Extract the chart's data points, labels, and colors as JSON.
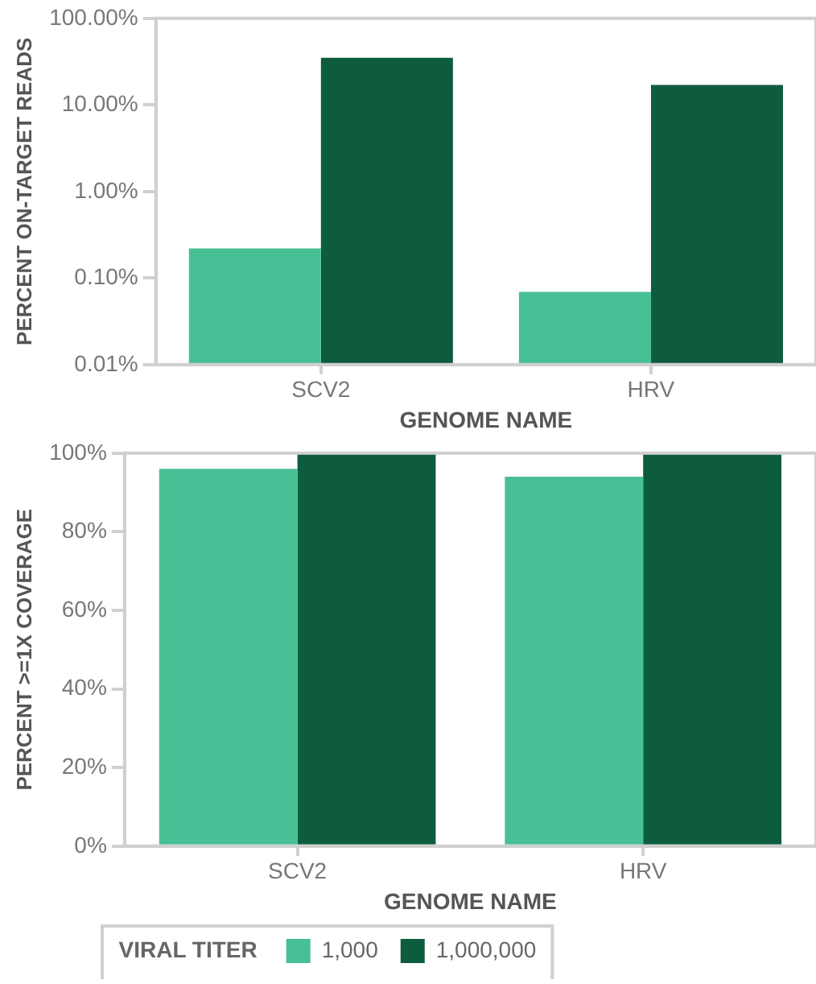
{
  "chart_data": [
    {
      "type": "bar",
      "xlabel": "GENOME NAME",
      "ylabel": "PERCENT ON-TARGET READS",
      "categories": [
        "SCV2",
        "HRV"
      ],
      "log": true,
      "series": [
        {
          "color": "#48bf94",
          "values": [
            0.22,
            0.069
          ]
        },
        {
          "color": "#0e5c3e",
          "values": [
            35,
            17
          ]
        }
      ],
      "ylim": [
        0.01,
        100
      ],
      "yticks": [
        {
          "value": 0.01,
          "label": "0.01%"
        },
        {
          "value": 0.1,
          "label": "0.10%"
        },
        {
          "value": 1,
          "label": "1.00%"
        },
        {
          "value": 10,
          "label": "10.00%"
        },
        {
          "value": 100,
          "label": "100.00%"
        }
      ],
      "grid": false
    },
    {
      "type": "bar",
      "xlabel": "GENOME NAME",
      "ylabel": "PERCENT >=1X COVERAGE",
      "categories": [
        "SCV2",
        "HRV"
      ],
      "legend": "bottom",
      "legend_title": "VIRAL TITER",
      "series": [
        {
          "name": "1,000",
          "color": "#48bf94",
          "values": [
            96,
            94
          ]
        },
        {
          "name": "1,000,000",
          "color": "#0e5c3e",
          "values": [
            100,
            100
          ]
        }
      ],
      "ylim": [
        0,
        100
      ],
      "yticks": [
        {
          "value": 0,
          "label": "0%"
        },
        {
          "value": 20,
          "label": "20%"
        },
        {
          "value": 40,
          "label": "40%"
        },
        {
          "value": 60,
          "label": "60%"
        },
        {
          "value": 80,
          "label": "80%"
        },
        {
          "value": 100,
          "label": "100%"
        }
      ],
      "grid": false
    }
  ]
}
